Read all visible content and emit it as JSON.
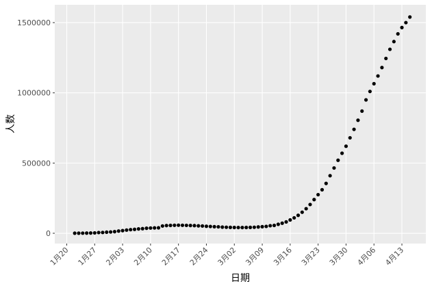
{
  "chart_data": {
    "type": "scatter",
    "x_label": "日期",
    "y_label": "人数",
    "x": [
      "01-22",
      "01-23",
      "01-24",
      "01-25",
      "01-26",
      "01-27",
      "01-28",
      "01-29",
      "01-30",
      "01-31",
      "02-01",
      "02-02",
      "02-03",
      "02-04",
      "02-05",
      "02-06",
      "02-07",
      "02-08",
      "02-09",
      "02-10",
      "02-11",
      "02-12",
      "02-13",
      "02-14",
      "02-15",
      "02-16",
      "02-17",
      "02-18",
      "02-19",
      "02-20",
      "02-21",
      "02-22",
      "02-23",
      "02-24",
      "02-25",
      "02-26",
      "02-27",
      "02-28",
      "02-29",
      "03-01",
      "03-02",
      "03-03",
      "03-04",
      "03-05",
      "03-06",
      "03-07",
      "03-08",
      "03-09",
      "03-10",
      "03-11",
      "03-12",
      "03-13",
      "03-14",
      "03-15",
      "03-16",
      "03-17",
      "03-18",
      "03-19",
      "03-20",
      "03-21",
      "03-22",
      "03-23",
      "03-24",
      "03-25",
      "03-26",
      "03-27",
      "03-28",
      "03-29",
      "03-30",
      "03-31",
      "04-01",
      "04-02",
      "04-03",
      "04-04",
      "04-05",
      "04-06",
      "04-07",
      "04-08",
      "04-09",
      "04-10",
      "04-11",
      "04-12",
      "04-13",
      "04-14",
      "04-15"
    ],
    "values": [
      500,
      600,
      900,
      1400,
      2000,
      2800,
      5300,
      5800,
      7800,
      9500,
      11600,
      16000,
      19000,
      23000,
      26000,
      28000,
      31000,
      33000,
      36000,
      37500,
      38500,
      39000,
      52000,
      55000,
      56000,
      57000,
      57500,
      57000,
      56500,
      55500,
      54700,
      53000,
      52000,
      50000,
      48500,
      47000,
      46000,
      44000,
      43000,
      42000,
      41500,
      41000,
      41000,
      41500,
      42000,
      43000,
      45000,
      47000,
      49000,
      54000,
      56000,
      64000,
      72000,
      81000,
      95000,
      110000,
      128000,
      150000,
      175000,
      205000,
      240000,
      275000,
      310000,
      355000,
      410000,
      465000,
      520000,
      570000,
      620000,
      680000,
      740000,
      805000,
      870000,
      950000,
      1010000,
      1065000,
      1120000,
      1180000,
      1245000,
      1310000,
      1365000,
      1420000,
      1465000,
      1500000,
      1540000
    ],
    "color": "#000000",
    "xlim": [
      "01-17",
      "04-19"
    ],
    "xticks": [
      {
        "value": "01-20",
        "label": "1月20"
      },
      {
        "value": "01-27",
        "label": "1月27"
      },
      {
        "value": "02-03",
        "label": "2月03"
      },
      {
        "value": "02-10",
        "label": "2月10"
      },
      {
        "value": "02-17",
        "label": "2月17"
      },
      {
        "value": "02-24",
        "label": "2月24"
      },
      {
        "value": "03-02",
        "label": "3月02"
      },
      {
        "value": "03-09",
        "label": "3月09"
      },
      {
        "value": "03-16",
        "label": "3月16"
      },
      {
        "value": "03-23",
        "label": "3月23"
      },
      {
        "value": "03-30",
        "label": "3月30"
      },
      {
        "value": "04-06",
        "label": "4月06"
      },
      {
        "value": "04-13",
        "label": "4月13"
      }
    ],
    "ylim": [
      -73000,
      1627000
    ],
    "yticks": [
      0,
      500000,
      1000000,
      1500000
    ],
    "grid": true
  }
}
